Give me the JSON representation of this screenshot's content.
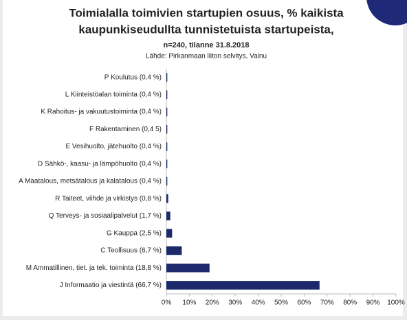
{
  "chart_data": {
    "type": "bar",
    "orientation": "horizontal",
    "title": [
      "Toimialalla toimivien startupien osuus, % kaikista",
      "kaupunkiseudullta tunnistetuista startupeista,"
    ],
    "subtitle": "n=240, tilanne 31.8.2018",
    "source": "Lähde: Pirkanmaan liiton selvitys, Vainu",
    "categories": [
      "P Koulutus (0,4 %)",
      "L Kiinteistöalan toiminta (0,4 %)",
      "K Rahoitus- ja vakuutustoiminta (0,4 %)",
      "F Rakentaminen (0,4 5)",
      "E Vesihuolto, jätehuolto (0,4 %)",
      "D Sähkö-, kaasu- ja lämpöhuolto (0,4 %)",
      "A Maatalous, metsätalous ja kalatalous (0,4 %)",
      "R Taiteet, viihde ja virkistys (0,8 %)",
      "Q Terveys- ja sosiaalipalvelut (1,7 %)",
      "G Kauppa (2,5 %)",
      "C Teollisuus (6,7 %)",
      "M Ammatillinen, tiet. ja tek. toiminta (18,8 %)",
      "J Informaatio ja viestintä (66,7 %)"
    ],
    "values": [
      0.4,
      0.4,
      0.4,
      0.4,
      0.4,
      0.4,
      0.4,
      0.8,
      1.7,
      2.5,
      6.7,
      18.8,
      66.7
    ],
    "color": "#1c2a6b",
    "xlim": [
      0,
      100
    ],
    "xticks": [
      {
        "value": 0,
        "label": "0%"
      },
      {
        "value": 10,
        "label": "10%"
      },
      {
        "value": 20,
        "label": "20%"
      },
      {
        "value": 30,
        "label": "30%"
      },
      {
        "value": 40,
        "label": "40%"
      },
      {
        "value": 50,
        "label": "50%"
      },
      {
        "value": 60,
        "label": "60%"
      },
      {
        "value": 70,
        "label": "70%"
      },
      {
        "value": 80,
        "label": "80%"
      },
      {
        "value": 90,
        "label": "90%"
      },
      {
        "value": 100,
        "label": "100%"
      }
    ],
    "grid": false
  }
}
